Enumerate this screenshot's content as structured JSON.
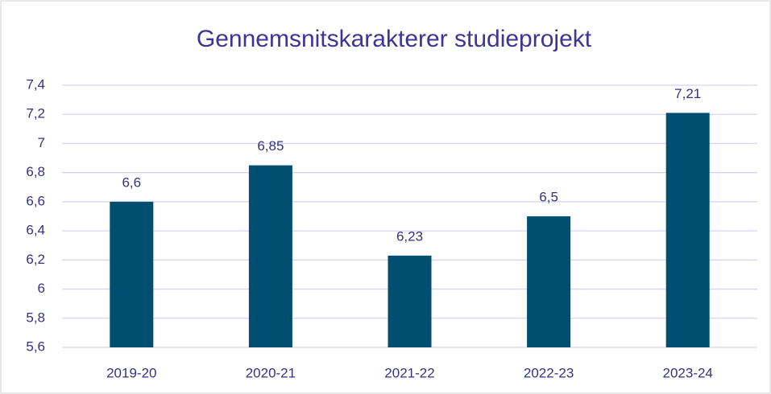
{
  "chart_data": {
    "type": "bar",
    "title": "Gennemsnitskarakterer studieprojekt",
    "categories": [
      "2019-20",
      "2020-21",
      "2021-22",
      "2022-23",
      "2023-24"
    ],
    "values": [
      6.6,
      6.85,
      6.23,
      6.5,
      7.21
    ],
    "value_labels": [
      "6,6",
      "6,85",
      "6,23",
      "6,5",
      "7,21"
    ],
    "color": "#004f70",
    "ylim": [
      5.6,
      7.4
    ],
    "yticks": [
      {
        "value": 5.6,
        "label": "5,6"
      },
      {
        "value": 5.8,
        "label": "5,8"
      },
      6,
      {
        "value": 6.2,
        "label": "6,2"
      },
      {
        "value": 6.4,
        "label": "6,4"
      },
      {
        "value": 6.6,
        "label": "6,6"
      },
      {
        "value": 6.8,
        "label": "6,8"
      },
      7,
      {
        "value": 7.2,
        "label": "7,2"
      },
      {
        "value": 7.4,
        "label": "7,4"
      }
    ],
    "grid": true
  }
}
